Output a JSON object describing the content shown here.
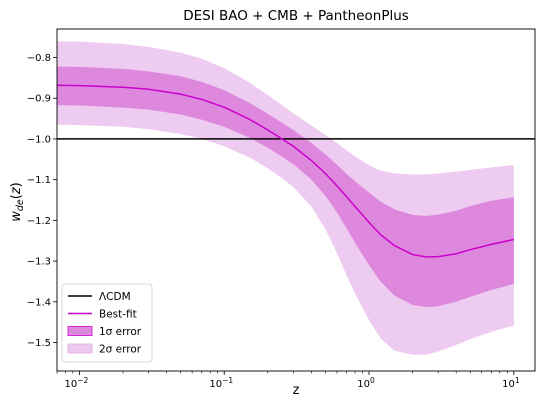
{
  "chart_data": {
    "type": "line",
    "title": "DESI BAO + CMB + PantheonPlus",
    "xlabel": "z",
    "ylabel": "w_de(z)",
    "xscale": "log",
    "xlim": [
      0.007,
      14
    ],
    "ylim": [
      -1.57,
      -0.73
    ],
    "x_ticks": [
      {
        "value": 0.01,
        "base": "10",
        "exp": "−2"
      },
      {
        "value": 0.1,
        "base": "10",
        "exp": "−1"
      },
      {
        "value": 1,
        "base": "10",
        "exp": "0"
      },
      {
        "value": 10,
        "base": "10",
        "exp": "1"
      }
    ],
    "y_ticks": [
      {
        "value": -0.8,
        "label": "−0.8"
      },
      {
        "value": -0.9,
        "label": "−0.9"
      },
      {
        "value": -1.0,
        "label": "−1.0"
      },
      {
        "value": -1.1,
        "label": "−1.1"
      },
      {
        "value": -1.2,
        "label": "−1.2"
      },
      {
        "value": -1.3,
        "label": "−1.3"
      },
      {
        "value": -1.4,
        "label": "−1.4"
      },
      {
        "value": -1.5,
        "label": "−1.5"
      }
    ],
    "reference_line": {
      "name": "ΛCDM",
      "y": -1.0,
      "color": "#000000"
    },
    "z": [
      0.007,
      0.01,
      0.02,
      0.03,
      0.05,
      0.07,
      0.1,
      0.15,
      0.2,
      0.25,
      0.3,
      0.4,
      0.5,
      0.6,
      0.7,
      0.8,
      1.0,
      1.2,
      1.5,
      2.0,
      2.5,
      3.0,
      4.0,
      5.0,
      7.0,
      10.0
    ],
    "series": [
      {
        "name": "Best-fit",
        "color": "#cc00cc",
        "values": [
          -0.868,
          -0.869,
          -0.873,
          -0.878,
          -0.89,
          -0.903,
          -0.922,
          -0.952,
          -0.978,
          -1.0,
          -1.018,
          -1.053,
          -1.085,
          -1.115,
          -1.142,
          -1.166,
          -1.205,
          -1.235,
          -1.262,
          -1.284,
          -1.29,
          -1.289,
          -1.282,
          -1.272,
          -1.259,
          -1.247
        ]
      },
      {
        "name": "1σ error",
        "color": "#dd88dd",
        "upper": [
          -0.822,
          -0.823,
          -0.828,
          -0.834,
          -0.846,
          -0.86,
          -0.88,
          -0.912,
          -0.938,
          -0.96,
          -0.978,
          -1.01,
          -1.038,
          -1.063,
          -1.086,
          -1.104,
          -1.132,
          -1.154,
          -1.173,
          -1.187,
          -1.189,
          -1.186,
          -1.176,
          -1.165,
          -1.152,
          -1.143
        ],
        "lower": [
          -0.917,
          -0.918,
          -0.923,
          -0.928,
          -0.94,
          -0.953,
          -0.97,
          -0.997,
          -1.022,
          -1.043,
          -1.062,
          -1.1,
          -1.14,
          -1.18,
          -1.22,
          -1.255,
          -1.31,
          -1.35,
          -1.385,
          -1.408,
          -1.413,
          -1.411,
          -1.4,
          -1.388,
          -1.371,
          -1.356
        ]
      },
      {
        "name": "2σ error",
        "color": "#eecbf0",
        "upper": [
          -0.76,
          -0.761,
          -0.767,
          -0.774,
          -0.788,
          -0.803,
          -0.826,
          -0.862,
          -0.892,
          -0.917,
          -0.937,
          -0.967,
          -0.99,
          -1.01,
          -1.028,
          -1.043,
          -1.065,
          -1.078,
          -1.085,
          -1.087,
          -1.087,
          -1.085,
          -1.08,
          -1.076,
          -1.07,
          -1.064
        ]
      },
      {
        "name": "2σ lower",
        "color": "#eecbf0",
        "values": [
          -0.965,
          -0.966,
          -0.97,
          -0.976,
          -0.988,
          -1.0,
          -1.018,
          -1.046,
          -1.072,
          -1.096,
          -1.118,
          -1.166,
          -1.222,
          -1.28,
          -1.335,
          -1.38,
          -1.445,
          -1.49,
          -1.52,
          -1.53,
          -1.53,
          -1.522,
          -1.506,
          -1.492,
          -1.474,
          -1.458
        ]
      }
    ],
    "legend": {
      "placement": "lower-left",
      "entries": [
        {
          "label": "ΛCDM",
          "kind": "line",
          "color": "#000000"
        },
        {
          "label": "Best-fit",
          "kind": "line",
          "color": "#cc00cc"
        },
        {
          "label": "1σ error",
          "kind": "patch",
          "color": "#dd88dd",
          "edge": "#cc00cc"
        },
        {
          "label": "2σ error",
          "kind": "patch",
          "color": "#eecbf0",
          "edge": "#e3a7e6"
        }
      ]
    },
    "grid": false
  }
}
